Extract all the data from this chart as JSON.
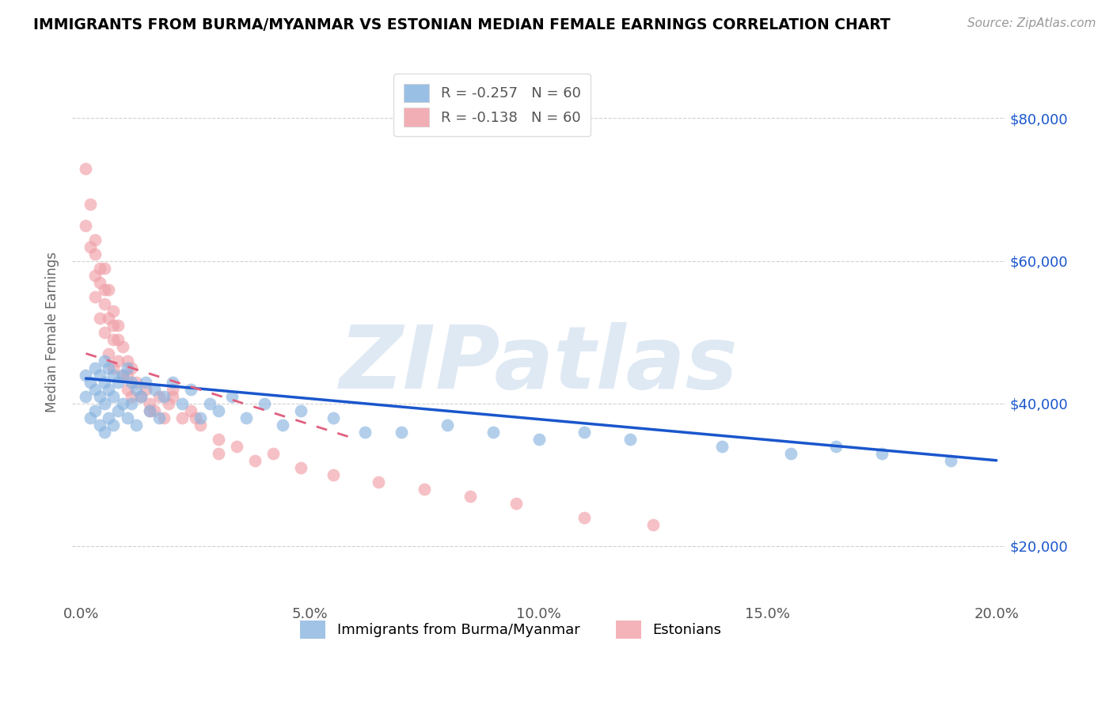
{
  "title": "IMMIGRANTS FROM BURMA/MYANMAR VS ESTONIAN MEDIAN FEMALE EARNINGS CORRELATION CHART",
  "source_text": "Source: ZipAtlas.com",
  "ylabel_text": "Median Female Earnings",
  "xlim": [
    -0.002,
    0.202
  ],
  "ylim": [
    12000,
    88000
  ],
  "xtick_labels": [
    "0.0%",
    "5.0%",
    "10.0%",
    "15.0%",
    "20.0%"
  ],
  "xtick_vals": [
    0.0,
    0.05,
    0.1,
    0.15,
    0.2
  ],
  "ytick_vals": [
    20000,
    40000,
    60000,
    80000
  ],
  "ytick_labels": [
    "$20,000",
    "$40,000",
    "$60,000",
    "$80,000"
  ],
  "blue_color": "#89b4e0",
  "pink_color": "#f0a0a8",
  "blue_line_color": "#1a56cc",
  "pink_line_color": "#e06080",
  "legend_blue_label": "R = -0.257   N = 60",
  "legend_pink_label": "R = -0.138   N = 60",
  "legend_series1": "Immigrants from Burma/Myanmar",
  "legend_series2": "Estonians",
  "watermark": "ZIPatlas",
  "blue_scatter_x": [
    0.001,
    0.001,
    0.002,
    0.002,
    0.003,
    0.003,
    0.003,
    0.004,
    0.004,
    0.004,
    0.005,
    0.005,
    0.005,
    0.005,
    0.006,
    0.006,
    0.006,
    0.007,
    0.007,
    0.007,
    0.008,
    0.008,
    0.009,
    0.009,
    0.01,
    0.01,
    0.011,
    0.011,
    0.012,
    0.012,
    0.013,
    0.014,
    0.015,
    0.016,
    0.017,
    0.018,
    0.02,
    0.022,
    0.024,
    0.026,
    0.028,
    0.03,
    0.033,
    0.036,
    0.04,
    0.044,
    0.048,
    0.055,
    0.062,
    0.07,
    0.08,
    0.09,
    0.1,
    0.11,
    0.12,
    0.14,
    0.155,
    0.165,
    0.175,
    0.19
  ],
  "blue_scatter_y": [
    44000,
    41000,
    43000,
    38000,
    45000,
    42000,
    39000,
    44000,
    41000,
    37000,
    46000,
    43000,
    40000,
    36000,
    45000,
    42000,
    38000,
    44000,
    41000,
    37000,
    43000,
    39000,
    44000,
    40000,
    45000,
    38000,
    43000,
    40000,
    42000,
    37000,
    41000,
    43000,
    39000,
    42000,
    38000,
    41000,
    43000,
    40000,
    42000,
    38000,
    40000,
    39000,
    41000,
    38000,
    40000,
    37000,
    39000,
    38000,
    36000,
    36000,
    37000,
    36000,
    35000,
    36000,
    35000,
    34000,
    33000,
    34000,
    33000,
    32000
  ],
  "pink_scatter_x": [
    0.001,
    0.001,
    0.002,
    0.002,
    0.003,
    0.003,
    0.003,
    0.004,
    0.004,
    0.005,
    0.005,
    0.005,
    0.006,
    0.006,
    0.006,
    0.007,
    0.007,
    0.007,
    0.008,
    0.008,
    0.009,
    0.009,
    0.01,
    0.01,
    0.011,
    0.011,
    0.012,
    0.013,
    0.014,
    0.015,
    0.016,
    0.017,
    0.018,
    0.019,
    0.02,
    0.022,
    0.024,
    0.026,
    0.03,
    0.034,
    0.038,
    0.042,
    0.048,
    0.055,
    0.065,
    0.075,
    0.085,
    0.095,
    0.11,
    0.125,
    0.01,
    0.015,
    0.02,
    0.025,
    0.003,
    0.004,
    0.03,
    0.008,
    0.005,
    0.007
  ],
  "pink_scatter_y": [
    73000,
    65000,
    62000,
    68000,
    58000,
    55000,
    61000,
    57000,
    52000,
    59000,
    54000,
    50000,
    56000,
    52000,
    47000,
    53000,
    49000,
    45000,
    51000,
    46000,
    48000,
    44000,
    46000,
    42000,
    45000,
    41000,
    43000,
    41000,
    42000,
    40000,
    39000,
    41000,
    38000,
    40000,
    42000,
    38000,
    39000,
    37000,
    35000,
    34000,
    32000,
    33000,
    31000,
    30000,
    29000,
    28000,
    27000,
    26000,
    24000,
    23000,
    44000,
    39000,
    41000,
    38000,
    63000,
    59000,
    33000,
    49000,
    56000,
    51000
  ],
  "background_color": "#ffffff",
  "grid_color": "#cccccc",
  "title_color": "#000000",
  "axis_label_color": "#666666",
  "tick_color_right": "#1a56cc",
  "tick_color_bottom": "#555555",
  "blue_trend_x0": 0.001,
  "blue_trend_x1": 0.2,
  "blue_trend_y0": 43500,
  "blue_trend_y1": 32000,
  "pink_trend_x0": 0.001,
  "pink_trend_x1": 0.06,
  "pink_trend_y0": 47000,
  "pink_trend_y1": 35000
}
